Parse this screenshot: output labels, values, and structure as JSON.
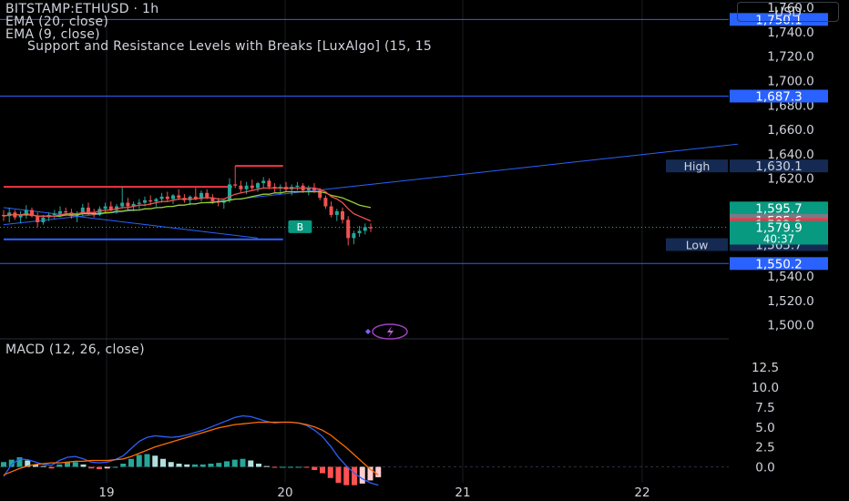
{
  "header": {
    "symbol_title": "BITSTAMP:ETHUSD · 1h",
    "ema20_label": "EMA (20, close)",
    "ema9_label": "EMA (9, close)",
    "sr_label": "Support and Resistance Levels with Breaks [LuxAlgo] (15, 15",
    "currency": "USD"
  },
  "price_axis": {
    "ticks": [
      1500,
      1520,
      1540,
      1560,
      1580,
      1600,
      1620,
      1640,
      1660,
      1680,
      1700,
      1720,
      1740,
      1760
    ],
    "tick_labels": [
      "1,500.0",
      "1,520.0",
      "1,540.0",
      "",
      "",
      "",
      "1,620.0",
      "1,640.0",
      "1,660.0",
      "1,680.0",
      "1,700.0",
      "1,720.0",
      "1,740.0",
      "1,760.0"
    ]
  },
  "price_tags": [
    {
      "label": "",
      "text": "1,750.1",
      "value": 1750.1,
      "color": "#2962ff",
      "text_color": "#ffffff"
    },
    {
      "label": "",
      "text": "1,687.3",
      "value": 1687.3,
      "color": "#2962ff",
      "text_color": "#ffffff"
    },
    {
      "label": "High",
      "text": "1,630.1",
      "value": 1630.1,
      "color": "#152a52",
      "text_color": "#d1d4dc"
    },
    {
      "label": "",
      "text": "1,595.7",
      "value": 1595.7,
      "color": "#089981",
      "text_color": "#ffffff"
    },
    {
      "label": "",
      "text": "1,585.6",
      "value": 1585.6,
      "color": "#787b86",
      "text_color": "#ffffff"
    },
    {
      "label": "",
      "text": "1,582.2",
      "value": 1582.2,
      "color": "#f23645",
      "text_color": "#ffffff"
    },
    {
      "label": "Low",
      "text": "1,565.7",
      "value": 1565.7,
      "color": "#152a52",
      "text_color": "#d1d4dc"
    },
    {
      "label": "",
      "text": "1,550.2",
      "value": 1550.2,
      "color": "#2962ff",
      "text_color": "#ffffff"
    }
  ],
  "last_price": {
    "text": "1,579.9",
    "countdown": "40:37",
    "value": 1579.9,
    "color": "#089981"
  },
  "break_label": {
    "text": "B",
    "color": "#089981"
  },
  "macd": {
    "title": "MACD (12, 26, close)",
    "ticks": [
      0,
      2.5,
      5,
      7.5,
      10,
      12.5
    ],
    "tick_labels": [
      "0.0",
      "2.5",
      "5.0",
      "7.5",
      "10.0",
      "12.5"
    ]
  },
  "time_axis": {
    "labels": [
      "19",
      "20",
      "21",
      "22"
    ]
  },
  "colors": {
    "up": "#26a69a",
    "down": "#ef5350",
    "ema20": "#9acd32",
    "ema9": "#ef5350",
    "macd_line": "#2962ff",
    "signal_line": "#ff6d00",
    "resistance": "#f23645",
    "support": "#2962ff"
  },
  "chart_data": {
    "type": "candlestick",
    "title": "BITSTAMP:ETHUSD · 1h",
    "ylim": [
      1490,
      1766
    ],
    "x_labels": [
      "19",
      "20",
      "21",
      "22"
    ],
    "series_labels": [
      "EMA (20, close)",
      "EMA (9, close)",
      "Support and Resistance Levels with Breaks [LuxAlgo] (15, 15"
    ],
    "ohlc": [
      [
        1590,
        1594,
        1585,
        1589
      ],
      [
        1589,
        1596,
        1584,
        1592
      ],
      [
        1592,
        1594,
        1586,
        1588
      ],
      [
        1588,
        1593,
        1583,
        1590
      ],
      [
        1590,
        1598,
        1587,
        1594
      ],
      [
        1594,
        1596,
        1588,
        1589
      ],
      [
        1589,
        1592,
        1580,
        1584
      ],
      [
        1584,
        1590,
        1582,
        1588
      ],
      [
        1588,
        1592,
        1585,
        1590
      ],
      [
        1590,
        1594,
        1587,
        1591
      ],
      [
        1591,
        1597,
        1588,
        1593
      ],
      [
        1593,
        1596,
        1589,
        1592
      ],
      [
        1592,
        1595,
        1587,
        1589
      ],
      [
        1589,
        1593,
        1584,
        1591
      ],
      [
        1591,
        1599,
        1589,
        1596
      ],
      [
        1596,
        1600,
        1590,
        1592
      ],
      [
        1592,
        1595,
        1588,
        1590
      ],
      [
        1590,
        1597,
        1589,
        1595
      ],
      [
        1595,
        1600,
        1592,
        1597
      ],
      [
        1597,
        1601,
        1593,
        1594
      ],
      [
        1594,
        1599,
        1591,
        1597
      ],
      [
        1597,
        1613,
        1595,
        1600
      ],
      [
        1600,
        1604,
        1594,
        1597
      ],
      [
        1597,
        1601,
        1593,
        1599
      ],
      [
        1599,
        1603,
        1595,
        1600
      ],
      [
        1600,
        1605,
        1597,
        1602
      ],
      [
        1602,
        1606,
        1598,
        1601
      ],
      [
        1601,
        1604,
        1597,
        1603
      ],
      [
        1603,
        1608,
        1600,
        1605
      ],
      [
        1605,
        1609,
        1601,
        1603
      ],
      [
        1603,
        1607,
        1599,
        1606
      ],
      [
        1606,
        1611,
        1602,
        1604
      ],
      [
        1604,
        1607,
        1600,
        1602
      ],
      [
        1602,
        1606,
        1598,
        1605
      ],
      [
        1605,
        1612,
        1602,
        1603
      ],
      [
        1603,
        1610,
        1601,
        1608
      ],
      [
        1608,
        1611,
        1603,
        1604
      ],
      [
        1604,
        1607,
        1599,
        1601
      ],
      [
        1601,
        1604,
        1597,
        1600
      ],
      [
        1600,
        1603,
        1595,
        1602
      ],
      [
        1602,
        1620,
        1600,
        1615
      ],
      [
        1615,
        1630,
        1612,
        1614
      ],
      [
        1614,
        1618,
        1608,
        1611
      ],
      [
        1611,
        1617,
        1607,
        1614
      ],
      [
        1614,
        1619,
        1610,
        1612
      ],
      [
        1612,
        1617,
        1609,
        1616
      ],
      [
        1616,
        1621,
        1612,
        1618
      ],
      [
        1618,
        1620,
        1611,
        1613
      ],
      [
        1613,
        1616,
        1608,
        1612
      ],
      [
        1612,
        1615,
        1607,
        1613
      ],
      [
        1613,
        1617,
        1609,
        1611
      ],
      [
        1611,
        1615,
        1606,
        1613
      ],
      [
        1613,
        1617,
        1610,
        1614
      ],
      [
        1614,
        1616,
        1608,
        1610
      ],
      [
        1610,
        1614,
        1606,
        1612
      ],
      [
        1612,
        1616,
        1608,
        1610
      ],
      [
        1610,
        1612,
        1602,
        1604
      ],
      [
        1604,
        1606,
        1595,
        1597
      ],
      [
        1597,
        1601,
        1588,
        1590
      ],
      [
        1590,
        1595,
        1585,
        1593
      ],
      [
        1593,
        1596,
        1583,
        1586
      ],
      [
        1586,
        1589,
        1565,
        1571
      ],
      [
        1571,
        1577,
        1566,
        1575
      ],
      [
        1575,
        1581,
        1572,
        1577
      ],
      [
        1577,
        1583,
        1574,
        1580
      ],
      [
        1580,
        1583,
        1576,
        1579
      ]
    ],
    "ema20": [
      1589,
      1590,
      1590,
      1590,
      1590,
      1590,
      1589,
      1589,
      1589,
      1589,
      1589,
      1590,
      1590,
      1590,
      1591,
      1591,
      1591,
      1591,
      1592,
      1592,
      1593,
      1593,
      1594,
      1594,
      1594,
      1595,
      1595,
      1596,
      1596,
      1597,
      1597,
      1598,
      1598,
      1599,
      1599,
      1600,
      1600,
      1600,
      1601,
      1601,
      1602,
      1603,
      1603,
      1604,
      1605,
      1606,
      1607,
      1607,
      1608,
      1608,
      1609,
      1609,
      1609,
      1609,
      1609,
      1609,
      1609,
      1608,
      1606,
      1605,
      1604,
      1602,
      1600,
      1598,
      1597,
      1596
    ],
    "ema9": [
      1589,
      1590,
      1590,
      1590,
      1591,
      1590,
      1589,
      1589,
      1589,
      1589,
      1590,
      1591,
      1591,
      1591,
      1592,
      1592,
      1592,
      1593,
      1594,
      1594,
      1595,
      1596,
      1596,
      1597,
      1598,
      1598,
      1599,
      1600,
      1601,
      1601,
      1602,
      1603,
      1603,
      1603,
      1603,
      1604,
      1604,
      1604,
      1603,
      1603,
      1605,
      1607,
      1608,
      1609,
      1610,
      1611,
      1612,
      1612,
      1612,
      1612,
      1612,
      1612,
      1612,
      1612,
      1612,
      1612,
      1611,
      1609,
      1605,
      1603,
      1600,
      1595,
      1591,
      1589,
      1587,
      1585
    ],
    "resistance_levels": [
      {
        "value": 1613,
        "x_from": 0,
        "x_to": 40
      },
      {
        "value": 1630.1,
        "x_from": 41,
        "x_to": 49
      }
    ],
    "support_levels": [
      {
        "value": 1570,
        "x_from": 0,
        "x_to": 49
      }
    ],
    "horizontal_lines": [
      1750.1,
      1687.3,
      1550.2
    ],
    "trendlines": [
      {
        "from": [
          0,
          1582
        ],
        "to": [
          130,
          1648
        ]
      },
      {
        "from": [
          0,
          1596
        ],
        "to": [
          45,
          1571
        ]
      }
    ],
    "break_signal": {
      "index": 52,
      "value": 1596,
      "label": "B"
    },
    "macd_line": [
      -1.2,
      0.3,
      1.0,
      0.9,
      0.6,
      0.3,
      0.2,
      0.8,
      1.2,
      1.3,
      1.0,
      0.6,
      0.5,
      0.6,
      0.9,
      1.4,
      2.3,
      3.2,
      3.7,
      3.9,
      3.8,
      3.7,
      3.8,
      4.0,
      4.3,
      4.6,
      5.0,
      5.4,
      5.8,
      6.2,
      6.4,
      6.3,
      6.0,
      5.7,
      5.5,
      5.6,
      5.6,
      5.5,
      5.2,
      4.6,
      3.8,
      2.6,
      1.2,
      0.1,
      -0.8,
      -1.5,
      -2.0,
      -2.3
    ],
    "signal_line": [
      -1.0,
      -0.6,
      -0.2,
      0.1,
      0.3,
      0.4,
      0.5,
      0.5,
      0.6,
      0.7,
      0.7,
      0.8,
      0.8,
      0.8,
      0.9,
      1.0,
      1.3,
      1.7,
      2.1,
      2.5,
      2.8,
      3.1,
      3.4,
      3.7,
      4.0,
      4.3,
      4.6,
      4.9,
      5.1,
      5.3,
      5.4,
      5.5,
      5.6,
      5.6,
      5.6,
      5.6,
      5.6,
      5.5,
      5.3,
      5.0,
      4.6,
      4.0,
      3.2,
      2.4,
      1.5,
      0.6,
      -0.3,
      -1.0
    ],
    "histogram": [
      0.6,
      0.9,
      1.2,
      0.8,
      0.3,
      0.1,
      -0.2,
      0.3,
      0.6,
      0.6,
      0.3,
      -0.2,
      -0.3,
      -0.2,
      0.0,
      0.4,
      1.0,
      1.5,
      1.6,
      1.4,
      1.0,
      0.6,
      0.4,
      0.3,
      0.3,
      0.3,
      0.4,
      0.5,
      0.7,
      0.9,
      1.0,
      0.8,
      0.4,
      0.1,
      -0.1,
      0.0,
      0.0,
      0.0,
      -0.1,
      -0.4,
      -0.8,
      -1.4,
      -2.0,
      -2.3,
      -2.3,
      -2.1,
      -1.7,
      -1.3
    ],
    "macd_ylim": [
      -2,
      14
    ]
  }
}
